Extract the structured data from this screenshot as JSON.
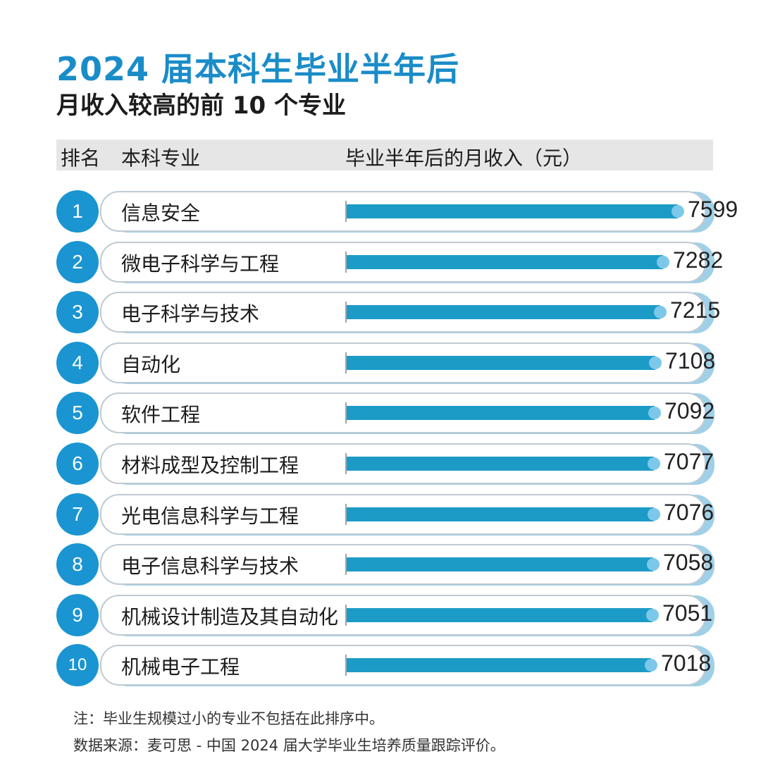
{
  "title": "2024 届本科生毕业半年后",
  "subtitle": "月收入较高的前 10 个专业",
  "header": {
    "rank": "排名",
    "major": "本科专业",
    "income": "毕业半年后的月收入（元）"
  },
  "chart_data": {
    "type": "bar",
    "title": "2024 届本科生毕业半年后 月收入较高的前 10 个专业",
    "xlabel": "本科专业",
    "ylabel": "毕业半年后的月收入（元）",
    "ranks": [
      "1",
      "2",
      "3",
      "4",
      "5",
      "6",
      "7",
      "8",
      "9",
      "10"
    ],
    "categories": [
      "信息安全",
      "微电子科学与工程",
      "电子科学与技术",
      "自动化",
      "软件工程",
      "材料成型及控制工程",
      "光电信息科学与工程",
      "电子信息科学与技术",
      "机械设计制造及其自动化",
      "机械电子工程"
    ],
    "values": [
      7599,
      7282,
      7215,
      7108,
      7092,
      7077,
      7076,
      7058,
      7051,
      7018
    ],
    "orientation": "horizontal",
    "colors": {
      "bar": "#1c9bc7",
      "rank_circle": "#1a95d2",
      "title": "#1a8cc8"
    }
  },
  "notes": {
    "note1": "注：毕业生规模过小的专业不包括在此排序中。",
    "note2": "数据来源：麦可思 - 中国 2024 届大学毕业生培养质量跟踪评价。"
  }
}
